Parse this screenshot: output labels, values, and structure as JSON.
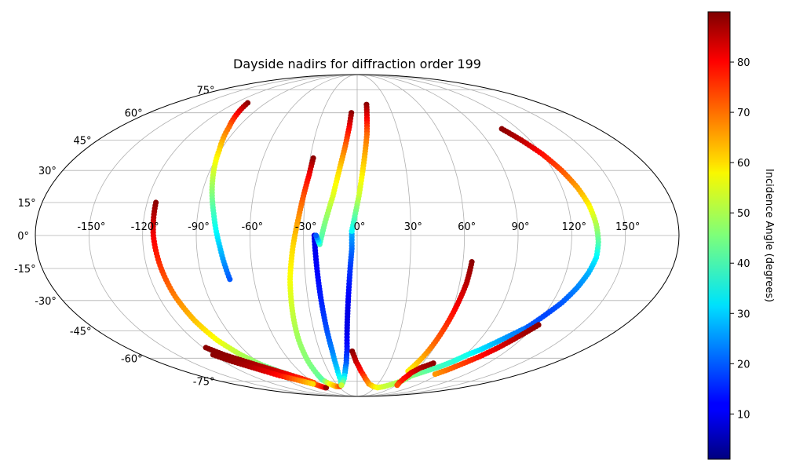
{
  "chart_data": {
    "type": "scatter",
    "projection": "mollweide",
    "title": "Dayside nadirs for diffraction order 199",
    "grid": true,
    "lon_ticks": [
      -150,
      -120,
      -90,
      -60,
      -30,
      0,
      30,
      60,
      90,
      120,
      150
    ],
    "lon_tick_labels": [
      "-150°",
      "-120°",
      "-90°",
      "-60°",
      "-30°",
      "0°",
      "30°",
      "60°",
      "90°",
      "120°",
      "150°"
    ],
    "lat_ticks": [
      75,
      60,
      45,
      30,
      15,
      0,
      -15,
      -30,
      -45,
      -60,
      -75
    ],
    "lat_tick_labels": [
      "75°",
      "60°",
      "45°",
      "30°",
      "15°",
      "0°",
      "-15°",
      "-30°",
      "-45°",
      "-60°",
      "-75°"
    ],
    "colorbar": {
      "label": "Incidence Angle (degrees)",
      "colormap": "jet",
      "range": [
        1,
        90
      ],
      "ticks": [
        10,
        20,
        30,
        40,
        50,
        60,
        70,
        80
      ],
      "tick_labels": [
        "10",
        "20",
        "30",
        "40",
        "50",
        "60",
        "70",
        "80"
      ]
    },
    "tracks": [
      {
        "lon": [
          -108,
          -103,
          -97,
          -91,
          -86,
          -81,
          -77,
          -74
        ],
        "lat": [
          66,
          60,
          52,
          40,
          25,
          10,
          -5,
          -20
        ],
        "incidence": [
          89,
          80,
          70,
          60,
          50,
          40,
          30,
          20
        ]
      },
      {
        "lon": [
          -115,
          -114,
          -112,
          -110,
          -107,
          -103,
          -97,
          -90,
          -82,
          -74
        ],
        "lat": [
          15,
          0,
          -15,
          -28,
          -40,
          -50,
          -58,
          -64,
          -68,
          -71
        ],
        "incidence": [
          89,
          80,
          74,
          68,
          62,
          56,
          50,
          46,
          42,
          38
        ]
      },
      {
        "lon": [
          -74,
          -68,
          -62,
          -58,
          -55,
          -54,
          -53
        ],
        "lat": [
          -71,
          -74,
          -77,
          -79,
          -80,
          -80,
          -80
        ],
        "incidence": [
          38,
          62,
          70,
          76,
          80,
          84,
          88
        ]
      },
      {
        "lon": [
          -118,
          -111,
          -103,
          -95,
          -86,
          -77,
          -68,
          -60
        ],
        "lat": [
          -54,
          -58,
          -61,
          -64,
          -67,
          -70,
          -73,
          -76
        ],
        "incidence": [
          89,
          89,
          88,
          86,
          84,
          80,
          76,
          72
        ]
      },
      {
        "lon": [
          -120,
          -112,
          -104,
          -96,
          -88,
          -80,
          -72,
          -64
        ],
        "lat": [
          -58,
          -62,
          -65,
          -68,
          -71,
          -73,
          -75,
          -77
        ],
        "incidence": [
          89,
          88,
          86,
          82,
          78,
          72,
          66,
          60
        ]
      },
      {
        "lon": [
          -28,
          -29,
          -31,
          -33,
          -36,
          -39,
          -41,
          -43,
          -44,
          -44,
          -44
        ],
        "lat": [
          36,
          28,
          18,
          8,
          -5,
          -20,
          -35,
          -50,
          -62,
          -70,
          -74
        ],
        "incidence": [
          89,
          80,
          72,
          66,
          60,
          56,
          52,
          48,
          46,
          44,
          42
        ]
      },
      {
        "lon": [
          -44,
          -40,
          -34,
          -28,
          -24
        ],
        "lat": [
          -74,
          -77,
          -79,
          -79,
          -78
        ],
        "incidence": [
          42,
          56,
          64,
          72,
          78
        ]
      },
      {
        "lon": [
          -24,
          -21,
          -20,
          -20,
          -21,
          -22,
          -23,
          -24
        ],
        "lat": [
          -78,
          -74,
          -66,
          -56,
          -44,
          -30,
          -15,
          0
        ],
        "incidence": [
          44,
          38,
          30,
          24,
          19,
          15,
          12,
          10
        ]
      },
      {
        "lon": [
          -5,
          -6,
          -8,
          -11,
          -14,
          -18,
          -21,
          -23
        ],
        "lat": [
          60,
          52,
          42,
          30,
          18,
          6,
          -4,
          0
        ],
        "incidence": [
          89,
          80,
          70,
          60,
          54,
          46,
          40,
          20
        ]
      },
      {
        "lon": [
          -3,
          -3,
          -4,
          -5,
          -6,
          -7,
          -8,
          -10,
          -13,
          -16,
          -20,
          -24
        ],
        "lat": [
          2,
          -6,
          -15,
          -25,
          -35,
          -45,
          -55,
          -63,
          -69,
          -73,
          -76,
          -78
        ],
        "incidence": [
          28,
          22,
          17,
          13,
          10,
          10,
          14,
          20,
          28,
          36,
          44,
          52
        ]
      },
      {
        "lon": [
          9,
          8,
          7,
          5,
          3,
          1,
          -1,
          -3
        ],
        "lat": [
          65,
          57,
          48,
          38,
          28,
          18,
          10,
          2
        ],
        "incidence": [
          89,
          80,
          70,
          64,
          58,
          52,
          44,
          35
        ]
      },
      {
        "lon": [
          -4,
          -1,
          4,
          10,
          17,
          26,
          35,
          44,
          52,
          58
        ],
        "lat": [
          -56,
          -62,
          -68,
          -73,
          -77,
          -79,
          -80,
          -79,
          -77,
          -75
        ],
        "incidence": [
          89,
          84,
          78,
          72,
          66,
          60,
          56,
          52,
          50,
          48
        ]
      },
      {
        "lon": [
          58,
          62,
          68,
          74,
          80,
          86,
          92,
          98,
          104,
          110,
          116
        ],
        "lat": [
          -75,
          -71,
          -69,
          -67,
          -65,
          -62,
          -58,
          -55,
          -51,
          -47,
          -43
        ],
        "incidence": [
          48,
          46,
          44,
          42,
          40,
          38,
          36,
          32,
          28,
          24,
          22
        ]
      },
      {
        "lon": [
          65,
          64,
          62,
          60,
          58,
          56,
          53
        ],
        "lat": [
          -12,
          -22,
          -32,
          -42,
          -52,
          -60,
          -68
        ],
        "incidence": [
          89,
          85,
          80,
          75,
          70,
          64,
          58
        ]
      },
      {
        "lon": [
          70,
          62,
          58,
          57,
          58,
          61
        ],
        "lat": [
          -63,
          -66,
          -69,
          -73,
          -76,
          -78
        ],
        "incidence": [
          89,
          86,
          82,
          78,
          76,
          72
        ]
      },
      {
        "lon": [
          108,
          114,
          120,
          125,
          129,
          132,
          134,
          135,
          135,
          133,
          130,
          126,
          121,
          116
        ],
        "lat": [
          51,
          45,
          38,
          30,
          22,
          14,
          5,
          -3,
          -10,
          -17,
          -24,
          -31,
          -37,
          -43
        ],
        "incidence": [
          89,
          85,
          78,
          72,
          65,
          58,
          50,
          42,
          34,
          28,
          24,
          20,
          18,
          20
        ]
      },
      {
        "lon": [
          122,
          116,
          110,
          104,
          98,
          92,
          86
        ],
        "lat": [
          -42,
          -48,
          -54,
          -59,
          -63,
          -67,
          -70
        ],
        "incidence": [
          89,
          86,
          82,
          78,
          74,
          70,
          66
        ]
      }
    ]
  }
}
